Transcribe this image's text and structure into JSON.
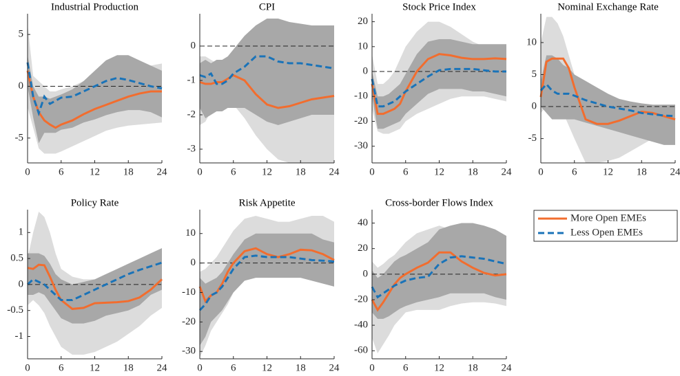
{
  "chart_data": [
    {
      "type": "line",
      "title": "Industrial Production",
      "x": [
        0,
        1,
        2,
        3,
        4,
        5,
        6,
        8,
        10,
        12,
        14,
        16,
        18,
        20,
        22,
        24
      ],
      "xlim": [
        0,
        24
      ],
      "xticks": [
        0,
        6,
        12,
        18,
        24
      ],
      "ylim": [
        -7.4,
        7
      ],
      "yticks": [
        -5,
        0,
        5
      ],
      "series": [
        {
          "name": "More Open EMEs",
          "color": "#f26d2e",
          "values": [
            1.5,
            -1,
            -2.5,
            -3.3,
            -3.7,
            -4,
            -3.7,
            -3.3,
            -2.7,
            -2.2,
            -1.8,
            -1.4,
            -1,
            -0.7,
            -0.5,
            -0.5
          ]
        },
        {
          "name": "Less Open EMEs",
          "color": "#1a73b8",
          "values": [
            2.3,
            -1,
            -2.6,
            -1,
            -1.7,
            -1.4,
            -1.1,
            -1,
            -0.5,
            0,
            0.5,
            0.8,
            0.6,
            0.3,
            0,
            -0.2
          ]
        }
      ],
      "bands": [
        {
          "color": "#dcdcdc",
          "upper": [
            6,
            1,
            0.5,
            0,
            -0.5,
            -0.5,
            -0.3,
            0,
            0.5,
            1,
            1.2,
            1.5,
            1.8,
            2,
            2,
            2.2
          ],
          "lower": [
            -2,
            -4,
            -6,
            -6.5,
            -6.5,
            -6.5,
            -6.3,
            -5.8,
            -5.3,
            -4.8,
            -4.3,
            -4,
            -3.8,
            -3.7,
            -3.6,
            -3.5
          ]
        },
        {
          "color": "#a8a8a8",
          "upper": [
            3,
            0,
            -1,
            -1,
            -1.2,
            -1,
            -0.8,
            -0.3,
            0.5,
            1.5,
            2.5,
            3,
            3,
            2.5,
            2,
            1.5
          ],
          "lower": [
            0,
            -3,
            -5.5,
            -4.5,
            -4.5,
            -4.5,
            -4.2,
            -4,
            -3.5,
            -3.2,
            -2.8,
            -2.5,
            -2.3,
            -2.3,
            -2.5,
            -3
          ]
        }
      ]
    },
    {
      "type": "line",
      "title": "CPI",
      "x": [
        0,
        1,
        2,
        3,
        4,
        5,
        6,
        8,
        10,
        12,
        14,
        16,
        18,
        20,
        22,
        24
      ],
      "xlim": [
        0,
        24
      ],
      "xticks": [
        0,
        6,
        12,
        18,
        24
      ],
      "ylim": [
        -3.4,
        0.94
      ],
      "yticks": [
        -3,
        -2,
        -1,
        0
      ],
      "series": [
        {
          "name": "More Open EMEs",
          "color": "#f26d2e",
          "values": [
            -1.05,
            -1.1,
            -1.1,
            -1.05,
            -1.05,
            -0.95,
            -0.85,
            -1,
            -1.4,
            -1.7,
            -1.8,
            -1.75,
            -1.65,
            -1.55,
            -1.5,
            -1.45
          ]
        },
        {
          "name": "Less Open EMEs",
          "color": "#1a73b8",
          "values": [
            -0.85,
            -0.9,
            -0.8,
            -1.1,
            -1.1,
            -1,
            -0.8,
            -0.6,
            -0.3,
            -0.3,
            -0.45,
            -0.5,
            -0.5,
            -0.55,
            -0.6,
            -0.65
          ]
        }
      ],
      "bands": [
        {
          "color": "#dcdcdc",
          "upper": [
            -0.3,
            -0.3,
            -0.4,
            -0.5,
            -0.5,
            -0.4,
            -0.3,
            0,
            0.3,
            0.4,
            0.4,
            0.3,
            0.2,
            0.1,
            0.05,
            0
          ],
          "lower": [
            -2.3,
            -2.2,
            -1.9,
            -1.7,
            -1.6,
            -1.6,
            -1.7,
            -2.1,
            -2.6,
            -3,
            -3.3,
            -3.4,
            -3.4,
            -3.4,
            -3.4,
            -3.4
          ]
        },
        {
          "color": "#a8a8a8",
          "upper": [
            -0.5,
            -0.4,
            -0.5,
            -0.4,
            -0.4,
            -0.3,
            -0.1,
            0.3,
            0.6,
            0.8,
            0.8,
            0.7,
            0.65,
            0.6,
            0.6,
            0.6
          ],
          "lower": [
            -1.8,
            -2.1,
            -2,
            -1.9,
            -1.9,
            -1.8,
            -1.8,
            -1.8,
            -2,
            -2.2,
            -2.3,
            -2.2,
            -2.1,
            -2,
            -2,
            -2
          ]
        }
      ]
    },
    {
      "type": "line",
      "title": "Stock Price Index",
      "x": [
        0,
        1,
        2,
        3,
        4,
        5,
        6,
        8,
        10,
        12,
        14,
        16,
        18,
        20,
        22,
        24
      ],
      "xlim": [
        0,
        24
      ],
      "xticks": [
        0,
        6,
        12,
        18,
        24
      ],
      "ylim": [
        -36.7,
        23.2
      ],
      "yticks": [
        -30,
        -20,
        -10,
        0,
        10,
        20
      ],
      "series": [
        {
          "name": "More Open EMEs",
          "color": "#f26d2e",
          "values": [
            -5,
            -17,
            -17,
            -16,
            -15,
            -13,
            -8,
            0,
            5,
            7,
            6.5,
            5.5,
            5,
            5,
            5.3,
            5
          ]
        },
        {
          "name": "Less Open EMEs",
          "color": "#1a73b8",
          "values": [
            -3,
            -14,
            -14,
            -13,
            -12,
            -10,
            -8,
            -5,
            -2,
            0.5,
            1,
            1,
            1,
            0.5,
            0,
            0
          ]
        }
      ],
      "bands": [
        {
          "color": "#dcdcdc",
          "upper": [
            7,
            -5,
            -5,
            -3,
            0,
            5,
            10,
            16,
            20,
            20,
            18,
            15,
            12,
            10,
            10,
            10
          ],
          "lower": [
            -15,
            -24,
            -25,
            -25,
            -24,
            -23,
            -20,
            -17,
            -15,
            -13,
            -11,
            -10,
            -10,
            -10,
            -11,
            -12
          ]
        },
        {
          "color": "#a8a8a8",
          "upper": [
            0,
            -10,
            -10,
            -9,
            -7,
            -5,
            -1,
            7,
            12,
            13,
            13,
            12,
            11,
            11,
            11,
            11
          ],
          "lower": [
            -10,
            -23,
            -23,
            -22,
            -21,
            -20,
            -17,
            -13,
            -9,
            -7,
            -7,
            -7,
            -8,
            -8,
            -9,
            -10
          ]
        }
      ]
    },
    {
      "type": "line",
      "title": "Nominal Exchange Rate",
      "x": [
        0,
        1,
        2,
        3,
        4,
        5,
        6,
        8,
        10,
        12,
        14,
        16,
        18,
        20,
        22,
        24
      ],
      "xlim": [
        0,
        24
      ],
      "xticks": [
        0,
        6,
        12,
        18,
        24
      ],
      "ylim": [
        -8.8,
        14.5
      ],
      "yticks": [
        -5,
        0,
        5,
        10
      ],
      "series": [
        {
          "name": "More Open EMEs",
          "color": "#f26d2e",
          "values": [
            1.5,
            7,
            7.5,
            7.5,
            7.5,
            6,
            3,
            -2,
            -2.7,
            -2.7,
            -2.2,
            -1.5,
            -0.8,
            -1,
            -1.5,
            -2
          ]
        },
        {
          "name": "Less Open EMEs",
          "color": "#1a73b8",
          "values": [
            2.5,
            3.5,
            2.5,
            2,
            2,
            2,
            1.7,
            1,
            0.5,
            0,
            -0.3,
            -0.6,
            -1,
            -1.2,
            -1.4,
            -1.5
          ]
        }
      ],
      "bands": [
        {
          "color": "#dcdcdc",
          "upper": [
            10,
            14,
            14,
            13,
            11,
            8,
            5,
            1,
            -1,
            -1.5,
            -1,
            -0.5,
            0,
            0.2,
            0.3,
            0.3
          ],
          "lower": [
            -1,
            0,
            0,
            0,
            -1,
            -3,
            -5,
            -8.8,
            -8.8,
            -8.5,
            -8,
            -7,
            -6,
            -5,
            -4.5,
            -4
          ]
        },
        {
          "color": "#a8a8a8",
          "upper": [
            4,
            8,
            8,
            7.5,
            6.5,
            6,
            5,
            4,
            3,
            2,
            1.2,
            0.8,
            0.5,
            0.3,
            0.3,
            0.3
          ],
          "lower": [
            0,
            -1,
            -2,
            -2,
            -2,
            -2,
            -2,
            -2.5,
            -3,
            -3.5,
            -4,
            -4.5,
            -5,
            -5.5,
            -6,
            -6
          ]
        }
      ]
    },
    {
      "type": "line",
      "title": "Policy Rate",
      "x": [
        0,
        1,
        2,
        3,
        4,
        5,
        6,
        8,
        10,
        12,
        14,
        16,
        18,
        20,
        22,
        24
      ],
      "xlim": [
        0,
        24
      ],
      "xticks": [
        0,
        6,
        12,
        18,
        24
      ],
      "ylim": [
        -1.43,
        1.44
      ],
      "yticks": [
        -1,
        -0.5,
        0,
        0.5,
        1
      ],
      "series": [
        {
          "name": "More Open EMEs",
          "color": "#f26d2e",
          "values": [
            0.32,
            0.3,
            0.38,
            0.37,
            0.15,
            -0.1,
            -0.3,
            -0.47,
            -0.45,
            -0.36,
            -0.35,
            -0.34,
            -0.32,
            -0.25,
            -0.1,
            0.1
          ]
        },
        {
          "name": "Less Open EMEs",
          "color": "#1a73b8",
          "values": [
            0,
            0.1,
            0.05,
            0,
            -0.1,
            -0.2,
            -0.3,
            -0.3,
            -0.2,
            -0.1,
            0,
            0.1,
            0.2,
            0.28,
            0.35,
            0.42
          ]
        }
      ],
      "bands": [
        {
          "color": "#dcdcdc",
          "upper": [
            0.5,
            1,
            1.4,
            1.3,
            1,
            0.6,
            0.3,
            0.15,
            0.1,
            0.1,
            0.1,
            0.15,
            0.2,
            0.3,
            0.4,
            0.5
          ],
          "lower": [
            -0.4,
            -0.3,
            -0.4,
            -0.55,
            -0.8,
            -1,
            -1.2,
            -1.35,
            -1.35,
            -1.3,
            -1.2,
            -1.1,
            -0.95,
            -0.8,
            -0.6,
            -0.45
          ]
        },
        {
          "color": "#a8a8a8",
          "upper": [
            0.6,
            0.6,
            0.6,
            0.55,
            0.4,
            0.2,
            0.1,
            0,
            0.05,
            0.1,
            0.2,
            0.3,
            0.4,
            0.5,
            0.6,
            0.7
          ],
          "lower": [
            -0.2,
            -0.2,
            -0.15,
            -0.2,
            -0.35,
            -0.5,
            -0.65,
            -0.75,
            -0.75,
            -0.7,
            -0.6,
            -0.55,
            -0.5,
            -0.4,
            -0.2,
            -0.1
          ]
        }
      ]
    },
    {
      "type": "line",
      "title": "Risk Appetite",
      "x": [
        0,
        1,
        2,
        3,
        4,
        5,
        6,
        8,
        10,
        12,
        14,
        16,
        18,
        20,
        22,
        24
      ],
      "xlim": [
        0,
        24
      ],
      "xticks": [
        0,
        6,
        12,
        18,
        24
      ],
      "ylim": [
        -32.5,
        18.1
      ],
      "yticks": [
        -30,
        -20,
        -10,
        0,
        10
      ],
      "series": [
        {
          "name": "More Open EMEs",
          "color": "#f26d2e",
          "values": [
            -8,
            -13,
            -11,
            -10,
            -7,
            -3,
            0,
            4,
            5,
            3,
            2,
            3,
            4.5,
            4.3,
            3,
            1
          ]
        },
        {
          "name": "Less Open EMEs",
          "color": "#1a73b8",
          "values": [
            -16,
            -14,
            -11,
            -10,
            -8,
            -5,
            -2,
            2,
            2.5,
            2,
            2,
            2,
            1.5,
            1,
            0.8,
            0.5
          ]
        }
      ],
      "bands": [
        {
          "color": "#dcdcdc",
          "upper": [
            -3,
            -2,
            0,
            2,
            5,
            8,
            11,
            15,
            16,
            15,
            14,
            14,
            15,
            16,
            16,
            14
          ],
          "lower": [
            -32,
            -28,
            -23,
            -20,
            -17,
            -14,
            -10,
            -5,
            -3,
            -4,
            -4,
            -3,
            -3,
            -4,
            -5,
            -6
          ]
        },
        {
          "color": "#a8a8a8",
          "upper": [
            -5,
            -7,
            -6,
            -5,
            -3,
            0,
            3,
            8,
            10,
            10,
            10,
            10,
            10,
            10,
            8,
            7
          ],
          "lower": [
            -28,
            -25,
            -20,
            -18,
            -16,
            -13,
            -10,
            -6,
            -5,
            -5,
            -5,
            -5,
            -5,
            -6,
            -7,
            -8
          ]
        }
      ]
    },
    {
      "type": "line",
      "title": "Cross-border Flows Index",
      "x": [
        0,
        1,
        2,
        3,
        4,
        5,
        6,
        8,
        10,
        12,
        14,
        16,
        18,
        20,
        22,
        24
      ],
      "xlim": [
        0,
        24
      ],
      "xticks": [
        0,
        6,
        12,
        18,
        24
      ],
      "ylim": [
        -66.3,
        50.5
      ],
      "yticks": [
        -60,
        -40,
        -20,
        0,
        20,
        40
      ],
      "series": [
        {
          "name": "More Open EMEs",
          "color": "#f26d2e",
          "values": [
            -20,
            -28,
            -22,
            -15,
            -8,
            -3,
            0,
            5,
            9,
            17,
            17,
            10,
            5,
            1,
            -1,
            0
          ]
        },
        {
          "name": "Less Open EMEs",
          "color": "#1a73b8",
          "values": [
            -10,
            -18,
            -15,
            -12,
            -9,
            -7,
            -5,
            -3,
            -2,
            8,
            13,
            14,
            13,
            12,
            10,
            8
          ]
        }
      ],
      "bands": [
        {
          "color": "#dcdcdc",
          "upper": [
            10,
            5,
            8,
            12,
            15,
            20,
            25,
            32,
            35,
            38,
            35,
            30,
            27,
            25,
            25,
            25
          ],
          "lower": [
            -50,
            -62,
            -55,
            -48,
            -40,
            -35,
            -30,
            -28,
            -28,
            -28,
            -25,
            -23,
            -22,
            -22,
            -23,
            -25
          ]
        },
        {
          "color": "#a8a8a8",
          "upper": [
            3,
            -3,
            0,
            5,
            10,
            13,
            15,
            20,
            25,
            35,
            38,
            40,
            40,
            38,
            35,
            30
          ],
          "lower": [
            -30,
            -35,
            -35,
            -33,
            -30,
            -27,
            -25,
            -22,
            -20,
            -18,
            -15,
            -15,
            -15,
            -15,
            -18,
            -20
          ]
        }
      ]
    }
  ]
}
